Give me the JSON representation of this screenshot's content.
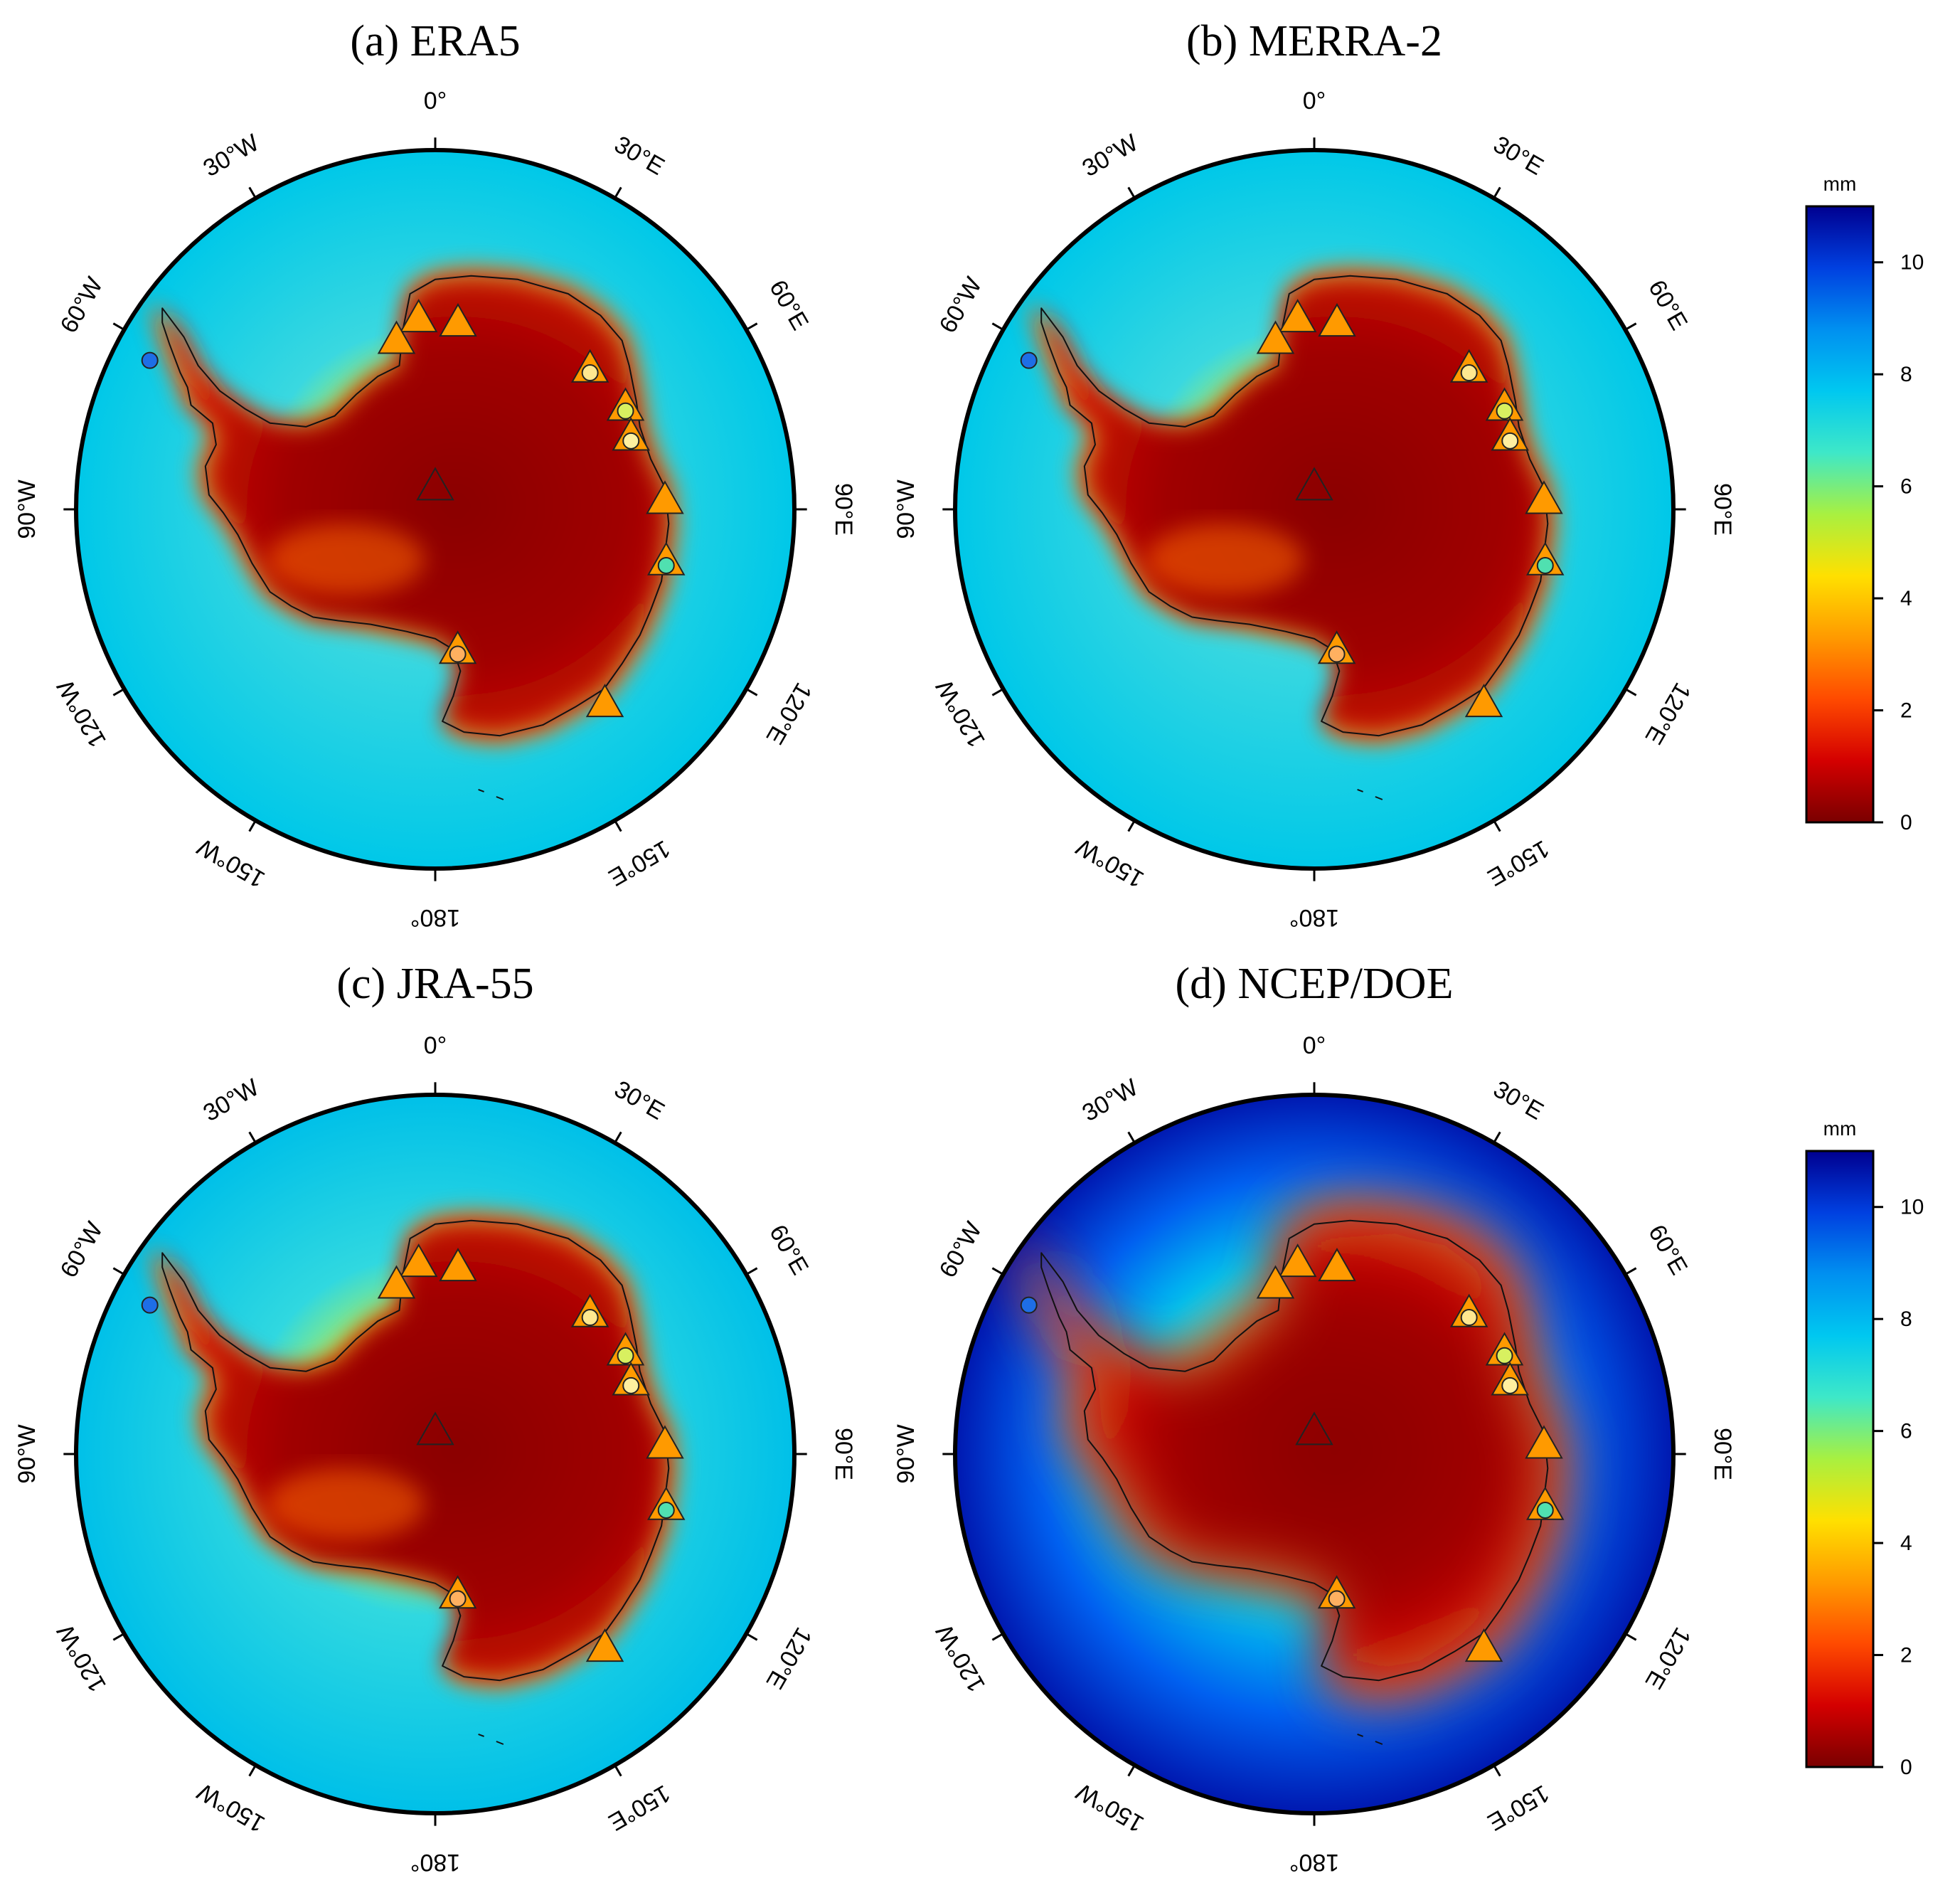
{
  "figure": {
    "panels": [
      {
        "id": "a",
        "title": "(a) ERA5",
        "style": "era5"
      },
      {
        "id": "b",
        "title": "(b) MERRA-2",
        "style": "era5"
      },
      {
        "id": "c",
        "title": "(c) JRA-55",
        "style": "jra"
      },
      {
        "id": "d",
        "title": "(d) NCEP/DOE",
        "style": "ncep"
      }
    ],
    "longitude_labels": [
      {
        "lon": 0,
        "text": "0°"
      },
      {
        "lon": 30,
        "text": "30°E"
      },
      {
        "lon": 60,
        "text": "60°E"
      },
      {
        "lon": 90,
        "text": "90°E"
      },
      {
        "lon": 120,
        "text": "120°E"
      },
      {
        "lon": 150,
        "text": "150°E"
      },
      {
        "lon": 180,
        "text": "180°"
      },
      {
        "lon": -150,
        "text": "150°W"
      },
      {
        "lon": -120,
        "text": "120°W"
      },
      {
        "lon": -90,
        "text": "90°W"
      },
      {
        "lon": -60,
        "text": "60°W"
      },
      {
        "lon": -30,
        "text": "30°W"
      }
    ],
    "colorbar": {
      "unit": "mm",
      "ticks": [
        "0",
        "2",
        "4",
        "6",
        "8",
        "10"
      ],
      "range": [
        0,
        11
      ],
      "colors": [
        "#7a0000",
        "#d40000",
        "#ff4a00",
        "#ff9a00",
        "#ffe000",
        "#a8f040",
        "#3ee8c8",
        "#00c8f0",
        "#0090f0",
        "#0040e0",
        "#000090"
      ]
    },
    "stations": {
      "triangles": [
        {
          "lon": -5,
          "dist": 0.53
        },
        {
          "lon": 7,
          "dist": 0.52
        },
        {
          "lon": -13,
          "dist": 0.48
        },
        {
          "lon": 0,
          "dist": 0.06
        },
        {
          "lon": 48,
          "dist": 0.58
        },
        {
          "lon": 62,
          "dist": 0.6
        },
        {
          "lon": 70,
          "dist": 0.58
        },
        {
          "lon": 88,
          "dist": 0.64
        },
        {
          "lon": 103,
          "dist": 0.66
        },
        {
          "lon": 139,
          "dist": 0.72
        },
        {
          "lon": 171,
          "dist": 0.4
        }
      ],
      "circles": [
        {
          "lon": -62,
          "dist": 0.9,
          "color": "#1e6ee6"
        },
        {
          "lon": 48,
          "dist": 0.58,
          "color": "#ffe890"
        },
        {
          "lon": 62,
          "dist": 0.6,
          "color": "#d8f060"
        },
        {
          "lon": 70,
          "dist": 0.58,
          "color": "#fff0a0"
        },
        {
          "lon": 103,
          "dist": 0.66,
          "color": "#50e0b0"
        },
        {
          "lon": 171,
          "dist": 0.4,
          "color": "#ffb060"
        }
      ]
    }
  }
}
